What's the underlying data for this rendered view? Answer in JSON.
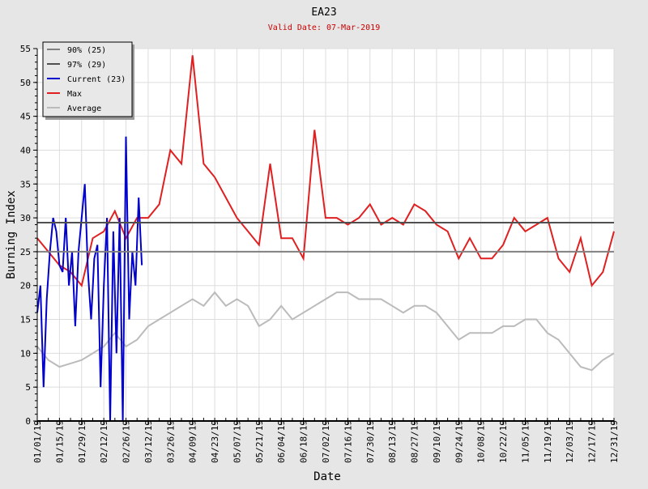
{
  "chart_data": {
    "type": "line",
    "title": "EA23",
    "subtitle": "Valid Date: 07-Mar-2019",
    "xlabel": "Date",
    "ylabel": "Burning Index",
    "ylim": [
      0,
      55
    ],
    "yticks": [
      0,
      5,
      10,
      15,
      20,
      25,
      30,
      35,
      40,
      45,
      50,
      55
    ],
    "xlim_days": [
      0,
      364
    ],
    "xtick_labels": [
      "01/01/19",
      "01/15/19",
      "01/29/19",
      "02/12/19",
      "02/26/19",
      "03/12/19",
      "03/26/19",
      "04/09/19",
      "04/23/19",
      "05/07/19",
      "05/21/19",
      "06/04/19",
      "06/18/19",
      "07/02/19",
      "07/16/19",
      "07/30/19",
      "08/13/19",
      "08/27/19",
      "09/10/19",
      "09/24/19",
      "10/08/19",
      "10/22/19",
      "11/05/19",
      "11/19/19",
      "12/03/19",
      "12/17/19",
      "12/31/19"
    ],
    "grid": true,
    "legend_position": "top-left",
    "legend": [
      "90% (25)",
      "97% (29)",
      "Current (23)",
      "Max",
      "Average"
    ],
    "colors": {
      "p90": "#808080",
      "p97": "#505050",
      "current": "#0000cc",
      "max": "#e02020",
      "average": "#bbbbbb"
    },
    "thresholds": {
      "p90": 25,
      "p97": 29.3
    },
    "series": [
      {
        "name": "Max",
        "step_days": 7,
        "values": [
          27,
          25,
          23,
          22,
          20,
          27,
          28,
          31,
          27,
          30,
          30,
          32,
          40,
          38,
          54,
          38,
          36,
          33,
          30,
          28,
          26,
          38,
          27,
          27,
          24,
          43,
          30,
          30,
          29,
          30,
          32,
          29,
          30,
          29,
          32,
          31,
          29,
          28,
          24,
          27,
          24,
          24,
          26,
          30,
          28,
          29,
          30,
          24,
          22,
          27,
          20,
          22,
          28
        ]
      },
      {
        "name": "Average",
        "step_days": 7,
        "values": [
          11,
          9,
          8,
          8.5,
          9,
          10,
          11,
          13,
          11,
          12,
          14,
          15,
          16,
          17,
          18,
          17,
          19,
          17,
          18,
          17,
          14,
          15,
          17,
          15,
          16,
          17,
          18,
          19,
          19,
          18,
          18,
          18,
          17,
          16,
          17,
          17,
          16,
          14,
          12,
          13,
          13,
          13,
          14,
          14,
          15,
          15,
          13,
          12,
          10,
          8,
          7.5,
          9,
          10
        ]
      },
      {
        "name": "Current (23)",
        "step_days": 2,
        "values": [
          16,
          20,
          5,
          18,
          25,
          30,
          28,
          23,
          22,
          30,
          20,
          25,
          14,
          25,
          30,
          35,
          22,
          15,
          24,
          26,
          5,
          20,
          30,
          0,
          28,
          10,
          30,
          0,
          42,
          15,
          25,
          20,
          33,
          23
        ]
      }
    ]
  }
}
